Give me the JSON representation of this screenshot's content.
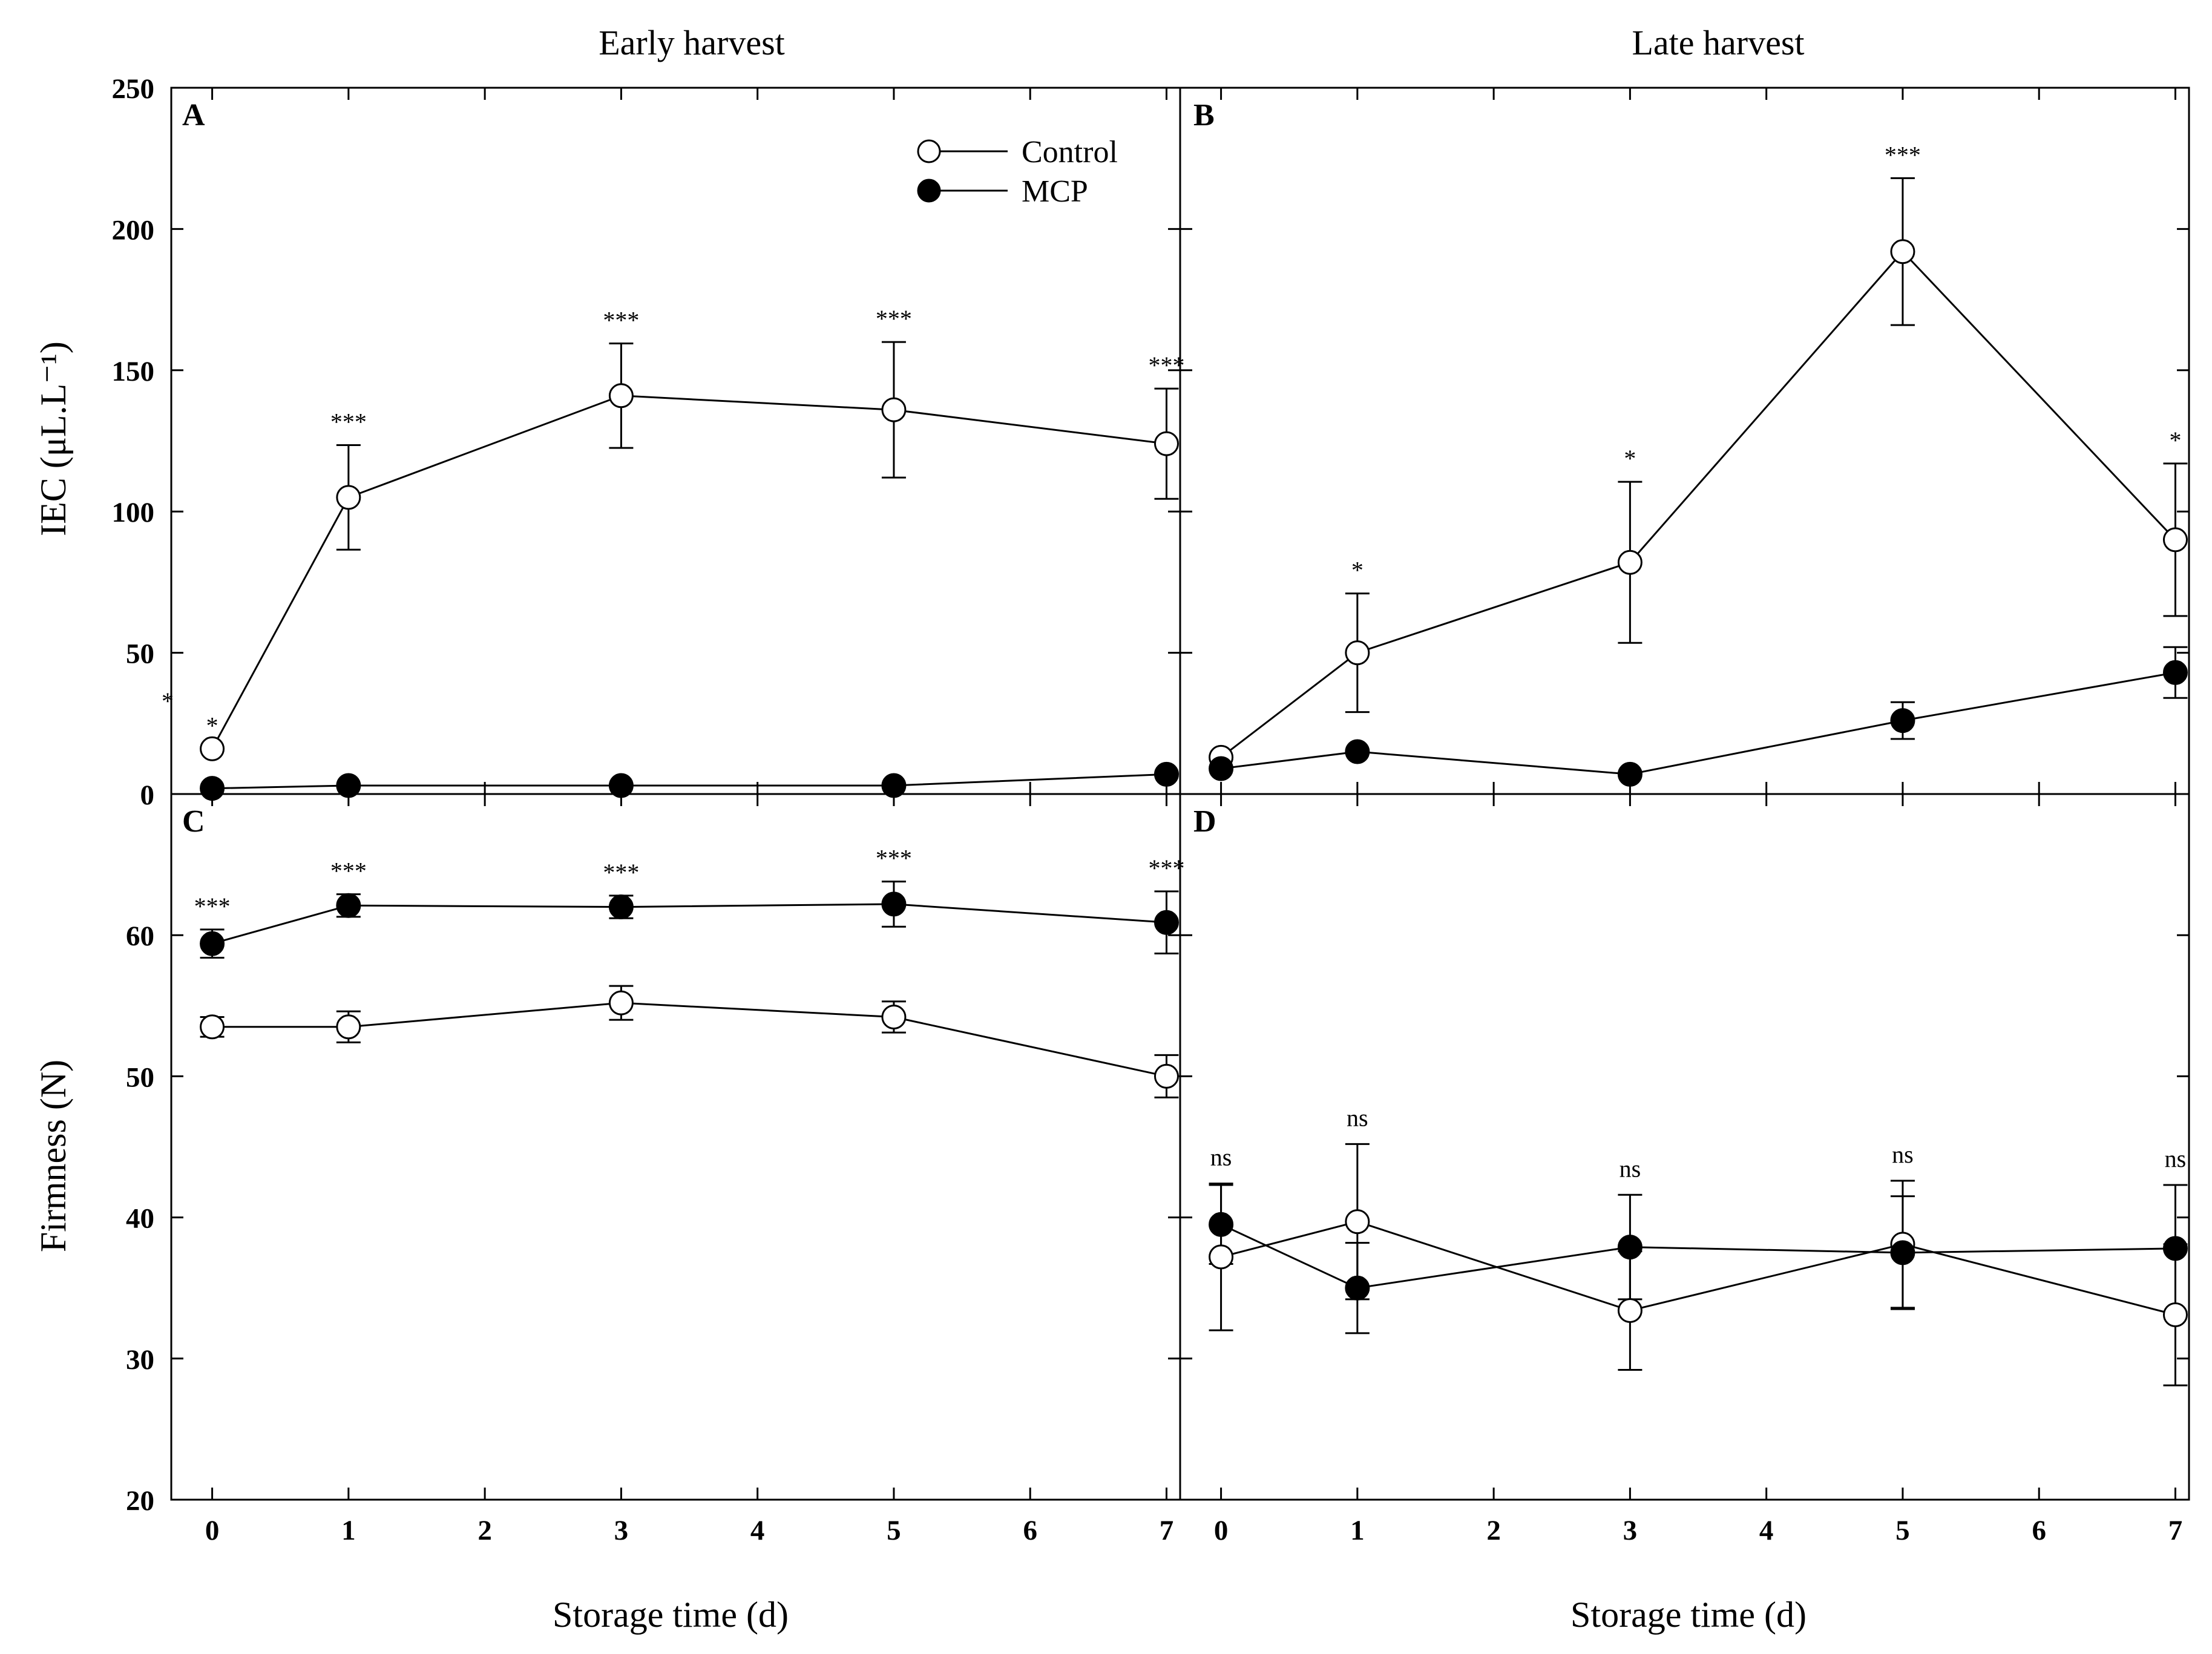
{
  "figure": {
    "column_titles": [
      "Early harvest",
      "Late harvest"
    ],
    "x_axis_label": "Storage time (d)",
    "y_label_top": "IEC (μL.L⁻¹)",
    "y_label_bottom": "Firmness (N)",
    "legend": [
      "Control",
      "MCP"
    ],
    "colors": {
      "control_fill": "#ffffff",
      "mcp_fill": "#000000",
      "line": "#000000"
    }
  },
  "chart_data": [
    {
      "panel": "A",
      "type": "line",
      "title": "Early harvest",
      "xlabel": "Storage time (d)",
      "ylabel": "IEC (μL.L⁻¹)",
      "xlim": [
        -0.3,
        7.1
      ],
      "ylim": [
        0,
        250
      ],
      "xticks": [
        0,
        1,
        2,
        3,
        4,
        5,
        6,
        7
      ],
      "yticks": [
        0,
        50,
        100,
        150,
        200,
        250
      ],
      "x": [
        0,
        1,
        3,
        5,
        7
      ],
      "series": [
        {
          "name": "Control",
          "values": [
            16,
            105,
            141,
            136,
            124
          ],
          "errors": [
            0,
            18.5,
            18.5,
            24,
            19.5
          ]
        },
        {
          "name": "MCP",
          "values": [
            2,
            3,
            3,
            3,
            7
          ],
          "errors": [
            0,
            0,
            0,
            0,
            0
          ]
        }
      ],
      "significance": [
        "*",
        "***",
        "***",
        "***",
        "***"
      ],
      "extra_mark": "*"
    },
    {
      "panel": "B",
      "type": "line",
      "title": "Late harvest",
      "xlabel": "Storage time (d)",
      "xlim": [
        -0.3,
        7.1
      ],
      "ylim": [
        0,
        250
      ],
      "xticks": [
        0,
        1,
        2,
        3,
        4,
        5,
        6,
        7
      ],
      "yticks": [
        0,
        50,
        100,
        150,
        200,
        250
      ],
      "x": [
        0,
        1,
        3,
        5,
        7
      ],
      "series": [
        {
          "name": "Control",
          "values": [
            13,
            50,
            82,
            192,
            90
          ],
          "errors": [
            0,
            21,
            28.5,
            26,
            27
          ]
        },
        {
          "name": "MCP",
          "values": [
            9,
            15,
            7,
            26,
            43
          ],
          "errors": [
            0,
            0,
            0,
            6.5,
            9
          ]
        }
      ],
      "significance": [
        "",
        "*",
        "*",
        "***",
        "*"
      ]
    },
    {
      "panel": "C",
      "type": "line",
      "xlabel": "Storage time (d)",
      "ylabel": "Firmness (N)",
      "xlim": [
        -0.3,
        7.1
      ],
      "ylim": [
        20,
        70
      ],
      "xticks": [
        0,
        1,
        2,
        3,
        4,
        5,
        6,
        7
      ],
      "yticks": [
        20,
        30,
        40,
        50,
        60
      ],
      "x": [
        0,
        1,
        3,
        5,
        7
      ],
      "series": [
        {
          "name": "Control",
          "values": [
            53.5,
            53.5,
            55.2,
            54.2,
            50
          ],
          "errors": [
            0.7,
            1.1,
            1.2,
            1.1,
            1.5
          ]
        },
        {
          "name": "MCP",
          "values": [
            59.4,
            62.1,
            62.0,
            62.2,
            60.9
          ],
          "errors": [
            1.0,
            0.8,
            0.8,
            1.6,
            2.2
          ]
        }
      ],
      "significance": [
        "***",
        "***",
        "***",
        "***",
        "***"
      ]
    },
    {
      "panel": "D",
      "type": "line",
      "xlabel": "Storage time (d)",
      "xlim": [
        -0.3,
        7.1
      ],
      "ylim": [
        20,
        70
      ],
      "xticks": [
        0,
        1,
        2,
        3,
        4,
        5,
        6,
        7
      ],
      "yticks": [
        20,
        30,
        40,
        50,
        60
      ],
      "x": [
        0,
        1,
        3,
        5,
        7
      ],
      "series": [
        {
          "name": "Control",
          "values": [
            37.2,
            39.7,
            33.4,
            38.1,
            33.1
          ],
          "errors": [
            5.2,
            5.5,
            4.2,
            4.5,
            5.0
          ]
        },
        {
          "name": "MCP",
          "values": [
            39.5,
            35.0,
            37.9,
            37.5,
            37.8
          ],
          "errors": [
            2.8,
            3.2,
            3.7,
            4.0,
            4.5
          ]
        }
      ],
      "significance": [
        "ns",
        "ns",
        "ns",
        "ns",
        "ns"
      ]
    }
  ]
}
